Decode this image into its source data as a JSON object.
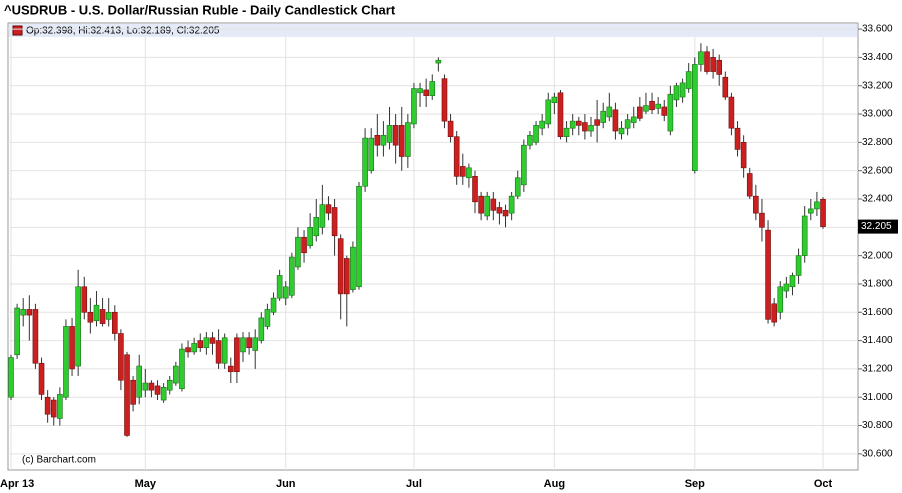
{
  "chart_data": {
    "type": "candlestick",
    "title": "^USDRUB - U.S. Dollar/Russian Ruble - Daily Candlestick Chart",
    "legend": "Op:32.398, Hi:32.413, Lo:32.189, Cl:32.205",
    "annotation": "(c) Barchart.com",
    "categories": [
      "Apr 13",
      null,
      null,
      null,
      null,
      null,
      null,
      null,
      null,
      null,
      null,
      null,
      null,
      null,
      null,
      null,
      null,
      null,
      null,
      null,
      null,
      null,
      "May",
      null,
      null,
      null,
      null,
      null,
      null,
      null,
      null,
      null,
      null,
      null,
      null,
      null,
      null,
      null,
      null,
      null,
      null,
      null,
      null,
      null,
      null,
      "Jun",
      null,
      null,
      null,
      null,
      null,
      null,
      null,
      null,
      null,
      null,
      null,
      null,
      null,
      null,
      null,
      null,
      null,
      null,
      null,
      null,
      "Jul",
      null,
      null,
      null,
      null,
      null,
      null,
      null,
      null,
      null,
      null,
      null,
      null,
      null,
      null,
      null,
      null,
      null,
      null,
      null,
      null,
      null,
      null,
      "Aug",
      null,
      null,
      null,
      null,
      null,
      null,
      null,
      null,
      null,
      null,
      null,
      null,
      null,
      null,
      null,
      null,
      null,
      null,
      null,
      null,
      null,
      null,
      "Sep",
      null,
      null,
      null,
      null,
      null,
      null,
      null,
      null,
      null,
      null,
      null,
      null,
      null,
      null,
      null,
      null,
      null,
      null,
      null,
      null,
      "Oct"
    ],
    "open": [
      31.0,
      31.3,
      31.58,
      31.62,
      31.62,
      31.24,
      31.0,
      30.98,
      30.85,
      31.0,
      31.5,
      31.22,
      31.78,
      31.6,
      31.54,
      31.62,
      31.55,
      31.6,
      31.45,
      31.3,
      31.12,
      31.0,
      31.05,
      31.1,
      31.08,
      30.98,
      31.05,
      31.1,
      31.06,
      31.35,
      31.32,
      31.4,
      31.35,
      31.42,
      31.4,
      31.24,
      31.22,
      31.42,
      31.32,
      31.42,
      31.33,
      31.4,
      31.5,
      31.6,
      31.7,
      31.7,
      31.72,
      31.92,
      32.13,
      32.07,
      32.14,
      32.2,
      32.36,
      32.34,
      32.12,
      31.98,
      31.76,
      31.78,
      32.49,
      32.6,
      32.85,
      32.78,
      32.8,
      32.92,
      32.92,
      32.7,
      32.93,
      33.15,
      33.17,
      33.13,
      33.36,
      33.25,
      32.95,
      32.84,
      32.63,
      32.55,
      32.56,
      32.42,
      32.28,
      32.4,
      32.34,
      32.32,
      32.3,
      32.42,
      32.5,
      32.78,
      32.8,
      32.9,
      32.93,
      33.08,
      33.15,
      32.84,
      32.9,
      32.95,
      32.94,
      32.88,
      32.96,
      32.94,
      32.98,
      33.03,
      32.86,
      32.9,
      32.94,
      33.05,
      33.02,
      33.09,
      33.04,
      33.05,
      32.88,
      33.1,
      33.12,
      33.18,
      32.6,
      33.35,
      33.44,
      33.4,
      33.38,
      33.26,
      33.12,
      32.9,
      32.8,
      32.58,
      32.42,
      32.3,
      32.18,
      31.66,
      31.6,
      31.75,
      31.78,
      31.86,
      32.0,
      32.3,
      32.33,
      32.398
    ],
    "high": [
      31.3,
      31.66,
      31.7,
      31.72,
      31.66,
      31.28,
      31.05,
      31.0,
      31.07,
      31.55,
      31.56,
      31.9,
      31.85,
      31.7,
      31.75,
      31.7,
      31.7,
      31.65,
      31.48,
      31.32,
      31.15,
      31.3,
      31.2,
      31.12,
      31.12,
      31.1,
      31.15,
      31.25,
      31.38,
      31.4,
      31.42,
      31.45,
      31.46,
      31.46,
      31.48,
      31.45,
      31.28,
      31.45,
      31.46,
      31.46,
      31.48,
      31.6,
      31.66,
      31.74,
      31.9,
      31.82,
      32.02,
      32.2,
      32.18,
      32.3,
      32.4,
      32.5,
      32.42,
      32.4,
      32.15,
      32.0,
      32.1,
      32.52,
      32.9,
      32.9,
      33.0,
      32.95,
      33.05,
      33.0,
      33.05,
      33.0,
      33.22,
      33.22,
      33.25,
      33.28,
      33.4,
      33.28,
      33.0,
      32.88,
      32.72,
      32.65,
      32.6,
      32.45,
      32.45,
      32.45,
      32.38,
      32.36,
      32.45,
      32.6,
      32.82,
      32.88,
      32.95,
      33.0,
      33.15,
      33.15,
      33.17,
      32.95,
      33.0,
      32.98,
      33.0,
      32.98,
      33.1,
      33.08,
      33.15,
      33.08,
      32.95,
      33.0,
      33.05,
      33.12,
      33.15,
      33.15,
      33.12,
      33.1,
      33.2,
      33.22,
      33.25,
      33.36,
      33.4,
      33.5,
      33.48,
      33.46,
      33.42,
      33.3,
      33.15,
      32.95,
      32.85,
      32.62,
      32.5,
      32.4,
      32.25,
      31.7,
      31.82,
      31.85,
      31.88,
      32.05,
      32.35,
      32.4,
      32.45,
      32.413
    ],
    "low": [
      30.98,
      31.27,
      31.5,
      31.4,
      31.2,
      30.98,
      30.82,
      30.8,
      30.8,
      30.98,
      31.15,
      31.15,
      31.55,
      31.45,
      31.5,
      31.5,
      31.5,
      31.4,
      31.05,
      30.72,
      30.9,
      30.95,
      31.0,
      31.0,
      30.98,
      30.96,
      31.02,
      31.08,
      31.04,
      31.28,
      31.3,
      31.32,
      31.3,
      31.3,
      31.2,
      31.2,
      31.1,
      31.1,
      31.25,
      31.3,
      31.2,
      31.38,
      31.48,
      31.58,
      31.68,
      31.65,
      31.7,
      31.9,
      31.95,
      32.05,
      32.1,
      32.15,
      32.25,
      32.0,
      31.55,
      31.5,
      31.74,
      31.76,
      32.45,
      32.58,
      32.7,
      32.7,
      32.75,
      32.65,
      32.6,
      32.62,
      32.9,
      33.05,
      33.05,
      33.1,
      33.3,
      32.9,
      32.8,
      32.5,
      32.5,
      32.48,
      32.3,
      32.25,
      32.25,
      32.25,
      32.22,
      32.2,
      32.25,
      32.4,
      32.45,
      32.75,
      32.78,
      32.85,
      32.9,
      33.0,
      32.82,
      32.8,
      32.85,
      32.85,
      32.82,
      32.84,
      32.8,
      32.9,
      32.95,
      32.82,
      32.82,
      32.85,
      32.9,
      32.95,
      33.0,
      33.0,
      33.0,
      32.95,
      32.85,
      33.05,
      33.08,
      33.15,
      32.58,
      33.3,
      33.28,
      33.25,
      33.2,
      33.1,
      32.85,
      32.7,
      32.55,
      32.4,
      32.25,
      32.1,
      31.52,
      31.5,
      31.55,
      31.7,
      31.72,
      31.8,
      31.95,
      32.25,
      32.28,
      32.189
    ],
    "close": [
      31.28,
      31.63,
      31.62,
      31.58,
      31.24,
      31.02,
      30.88,
      30.86,
      31.02,
      31.5,
      31.2,
      31.78,
      31.6,
      31.53,
      31.65,
      31.52,
      31.6,
      31.45,
      31.12,
      30.73,
      30.95,
      31.22,
      31.1,
      31.05,
      31.02,
      31.07,
      31.12,
      31.22,
      31.34,
      31.32,
      31.38,
      31.35,
      31.42,
      31.38,
      31.24,
      31.42,
      31.18,
      31.18,
      31.42,
      31.35,
      31.42,
      31.56,
      31.62,
      31.7,
      31.86,
      31.78,
      31.99,
      32.13,
      32.02,
      32.2,
      32.27,
      32.36,
      32.3,
      32.14,
      31.73,
      31.73,
      32.06,
      32.49,
      32.83,
      32.83,
      32.78,
      32.85,
      32.92,
      32.78,
      32.7,
      32.94,
      33.18,
      33.18,
      33.13,
      33.23,
      33.38,
      32.95,
      32.84,
      32.56,
      32.56,
      32.62,
      32.38,
      32.3,
      32.42,
      32.32,
      32.3,
      32.28,
      32.42,
      32.55,
      32.78,
      32.85,
      32.92,
      32.95,
      33.1,
      33.12,
      32.84,
      32.9,
      32.95,
      32.92,
      32.88,
      32.92,
      32.92,
      33.02,
      33.05,
      32.88,
      32.9,
      32.96,
      32.98,
      32.97,
      33.06,
      33.03,
      33.07,
      32.99,
      33.14,
      33.2,
      33.22,
      33.3,
      33.35,
      33.44,
      33.3,
      33.3,
      33.28,
      33.12,
      32.9,
      32.75,
      32.62,
      32.42,
      32.3,
      32.2,
      31.55,
      31.53,
      31.78,
      31.8,
      31.86,
      32.0,
      32.28,
      32.33,
      32.38,
      32.205
    ],
    "up_color": "#2ecc2e",
    "down_color": "#cc2020",
    "ylim": [
      30.486,
      33.643
    ],
    "yticks": [
      {
        "value": 30.6,
        "label": "30.600"
      },
      {
        "value": 30.8,
        "label": "30.800"
      },
      {
        "value": 31.0,
        "label": "31.000"
      },
      {
        "value": 31.2,
        "label": "31.200"
      },
      {
        "value": 31.4,
        "label": "31.400"
      },
      {
        "value": 31.6,
        "label": "31.600"
      },
      {
        "value": 31.8,
        "label": "31.800"
      },
      {
        "value": 32.0,
        "label": "32.000"
      },
      {
        "value": 32.2,
        "label": "32.200"
      },
      {
        "value": 32.4,
        "label": "32.400"
      },
      {
        "value": 32.6,
        "label": "32.600"
      },
      {
        "value": 32.8,
        "label": "32.800"
      },
      {
        "value": 33.0,
        "label": "33.000"
      },
      {
        "value": 33.2,
        "label": "33.200"
      },
      {
        "value": 33.4,
        "label": "33.400"
      },
      {
        "value": 33.6,
        "label": "33.600"
      }
    ],
    "grid": true
  }
}
